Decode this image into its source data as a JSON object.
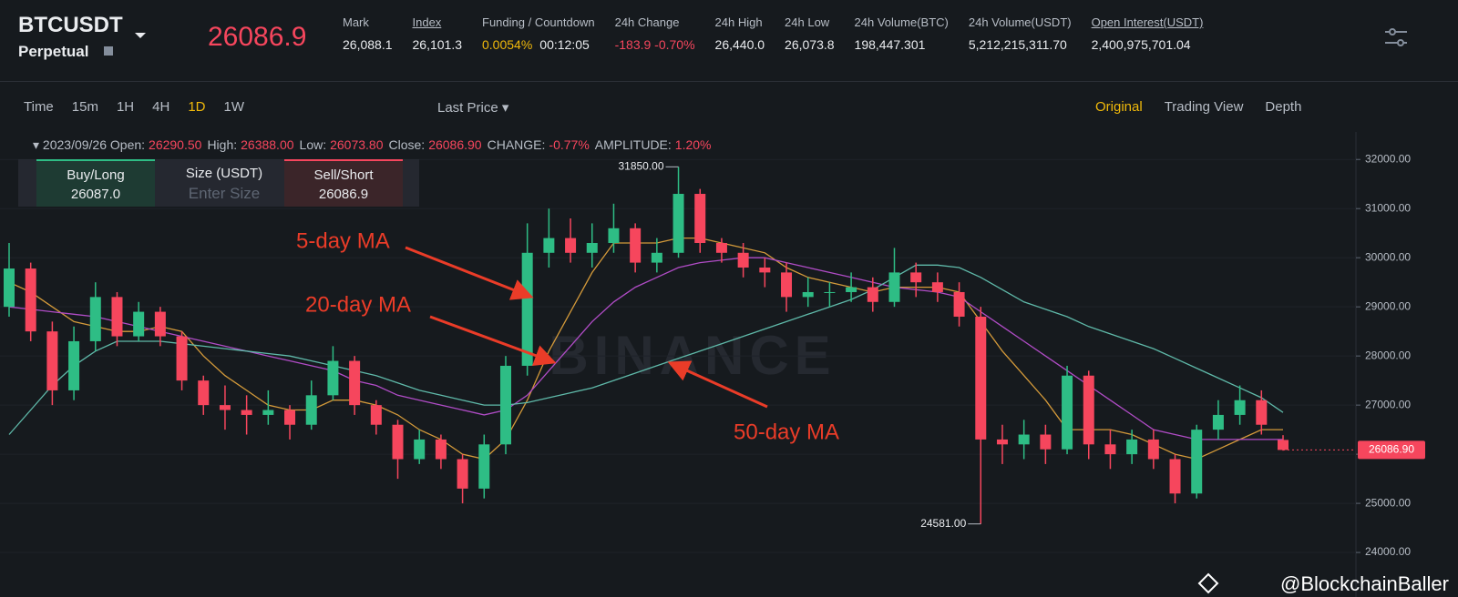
{
  "header": {
    "symbol": "BTCUSDT",
    "contract": "Perpetual",
    "last_price": "26086.9",
    "stats": [
      {
        "label": "Mark",
        "values": [
          "26,088.1"
        ]
      },
      {
        "label": "Index",
        "values": [
          "26,101.3"
        ]
      },
      {
        "label": "Funding / Countdown",
        "values": [
          "0.0054%",
          "00:12:05"
        ]
      },
      {
        "label": "24h Change",
        "values": [
          "-183.9 -0.70%"
        ]
      },
      {
        "label": "24h High",
        "values": [
          "26,440.0"
        ]
      },
      {
        "label": "24h Low",
        "values": [
          "26,073.8"
        ]
      },
      {
        "label": "24h Volume(BTC)",
        "values": [
          "198,447.301"
        ]
      },
      {
        "label": "24h Volume(USDT)",
        "values": [
          "5,212,215,311.70"
        ]
      },
      {
        "label": "Open Interest(USDT)",
        "values": [
          "2,400,975,701.04"
        ]
      }
    ]
  },
  "toolbar": {
    "intervals": [
      "Time",
      "15m",
      "1H",
      "4H",
      "1D",
      "1W"
    ],
    "active": "1D",
    "price_type": "Last Price",
    "views": [
      "Original",
      "Trading View",
      "Depth"
    ],
    "active_view": "Original"
  },
  "ohlc_bar": {
    "date": "2023/09/26",
    "items": [
      {
        "label": "Open:",
        "value": "26290.50"
      },
      {
        "label": "High:",
        "value": "26388.00"
      },
      {
        "label": "Low:",
        "value": "26073.80"
      },
      {
        "label": "Close:",
        "value": "26086.90"
      },
      {
        "label": "CHANGE:",
        "value": "-0.77%"
      },
      {
        "label": "AMPLITUDE:",
        "value": "1.20%"
      }
    ]
  },
  "order_panel": {
    "buy_label": "Buy/Long",
    "buy_price": "26087.0",
    "size_label": "Size (USDT)",
    "size_placeholder": "Enter Size",
    "sell_label": "Sell/Short",
    "sell_price": "26086.9"
  },
  "watermark": "BINANCE",
  "credit": "@BlockchainBaller",
  "chart_data": {
    "type": "candlestick",
    "ylim": [
      23390,
      32560
    ],
    "yticks": [
      {
        "value": 24000,
        "label": "24000.00"
      },
      {
        "value": 25000,
        "label": "25000.00"
      },
      {
        "value": 26000,
        "label": "26000.00"
      },
      {
        "value": 27000,
        "label": "27000.00"
      },
      {
        "value": 28000,
        "label": "28000.00"
      },
      {
        "value": 29000,
        "label": "29000.00"
      },
      {
        "value": 30000,
        "label": "30000.00"
      },
      {
        "value": 31000,
        "label": "31000.00"
      },
      {
        "value": 32000,
        "label": "32000.00"
      }
    ],
    "grid": true,
    "up_color": "#2ebd85",
    "down_color": "#f6465d",
    "open": [
      29000,
      29780,
      28500,
      27300,
      28300,
      29200,
      28400,
      28900,
      28400,
      27500,
      27000,
      26900,
      26800,
      26900,
      26600,
      27200,
      27900,
      27000,
      26600,
      25900,
      26300,
      25900,
      25300,
      26200,
      27800,
      30100,
      30400,
      30100,
      30300,
      30600,
      29900,
      30100,
      31300,
      30300,
      30100,
      29800,
      29700,
      29200,
      29300,
      29300,
      29400,
      29100,
      29700,
      29500,
      29300,
      28800,
      26300,
      26200,
      26400,
      26100,
      27600,
      26200,
      26000,
      26300,
      25900,
      25200,
      26500,
      26800,
      27100,
      26290.5
    ],
    "high": [
      30300,
      29900,
      28700,
      28600,
      29500,
      29300,
      29100,
      29000,
      28500,
      27600,
      27400,
      27200,
      27300,
      27000,
      27500,
      28200,
      28000,
      27100,
      26700,
      26500,
      26400,
      26000,
      26400,
      28000,
      30700,
      31000,
      30800,
      30700,
      31100,
      30700,
      30400,
      31850,
      31400,
      30400,
      30300,
      30000,
      29900,
      29600,
      29500,
      29700,
      29600,
      30200,
      29900,
      29700,
      29500,
      29000,
      26600,
      26700,
      26600,
      27800,
      27700,
      26500,
      26500,
      26500,
      26000,
      26600,
      27100,
      27400,
      27300,
      26388
    ],
    "low": [
      28800,
      28300,
      27000,
      27100,
      28100,
      28200,
      28300,
      28200,
      27300,
      26800,
      26500,
      26400,
      26600,
      26300,
      26500,
      27100,
      26800,
      26400,
      25500,
      25800,
      25700,
      25000,
      25100,
      26000,
      27600,
      29800,
      29900,
      29800,
      30100,
      29700,
      29700,
      30000,
      30100,
      29900,
      29600,
      29400,
      28900,
      29000,
      29000,
      29100,
      28900,
      29000,
      29200,
      29100,
      28600,
      24581,
      25800,
      25900,
      25800,
      26000,
      25900,
      25700,
      25800,
      25700,
      25000,
      25100,
      26300,
      26600,
      26400,
      26073.8
    ],
    "close": [
      29780,
      28500,
      27300,
      28300,
      29200,
      28400,
      28900,
      28400,
      27500,
      27000,
      26900,
      26800,
      26900,
      26600,
      27200,
      27900,
      27000,
      26600,
      25900,
      26300,
      25900,
      25300,
      26200,
      27800,
      30100,
      30400,
      30100,
      30300,
      30600,
      29900,
      30100,
      31300,
      30300,
      30100,
      29800,
      29700,
      29200,
      29300,
      29300,
      29400,
      29100,
      29700,
      29500,
      29300,
      28800,
      26300,
      26200,
      26400,
      26100,
      27600,
      26200,
      26000,
      26300,
      25900,
      25200,
      26500,
      26800,
      27100,
      26600,
      26086.9
    ],
    "ma_series": [
      {
        "name": "5-day MA",
        "color": "#d49a3a",
        "values": [
          29500,
          29300,
          29000,
          28700,
          28600,
          28500,
          28500,
          28600,
          28500,
          28000,
          27600,
          27300,
          27000,
          26900,
          26900,
          27100,
          27100,
          27000,
          26800,
          26500,
          26300,
          26000,
          25900,
          26300,
          27100,
          28100,
          28900,
          29700,
          30300,
          30300,
          30300,
          30400,
          30400,
          30300,
          30200,
          30100,
          29800,
          29600,
          29500,
          29400,
          29300,
          29400,
          29400,
          29400,
          29300,
          28700,
          28100,
          27600,
          27100,
          26500,
          26500,
          26500,
          26400,
          26200,
          26000,
          25900,
          26100,
          26300,
          26500,
          26500
        ]
      },
      {
        "name": "20-day MA",
        "color": "#b04cc6",
        "values": [
          29000,
          28950,
          28900,
          28850,
          28800,
          28700,
          28600,
          28500,
          28400,
          28300,
          28200,
          28100,
          28000,
          27900,
          27800,
          27700,
          27500,
          27400,
          27200,
          27100,
          27000,
          26900,
          26800,
          26900,
          27200,
          27700,
          28200,
          28700,
          29100,
          29400,
          29600,
          29800,
          29900,
          29950,
          30000,
          30000,
          29900,
          29800,
          29700,
          29600,
          29500,
          29400,
          29350,
          29300,
          29200,
          28900,
          28600,
          28300,
          28000,
          27700,
          27400,
          27100,
          26800,
          26500,
          26400,
          26300,
          26300,
          26300,
          26300,
          26300
        ]
      },
      {
        "name": "50-day MA",
        "color": "#5fb9a9",
        "values": [
          26400,
          26900,
          27400,
          27800,
          28100,
          28300,
          28300,
          28300,
          28250,
          28200,
          28150,
          28100,
          28050,
          28000,
          27900,
          27800,
          27700,
          27600,
          27450,
          27300,
          27200,
          27100,
          27000,
          27000,
          27050,
          27150,
          27250,
          27350,
          27500,
          27650,
          27800,
          27950,
          28100,
          28250,
          28400,
          28550,
          28700,
          28850,
          29000,
          29150,
          29350,
          29600,
          29850,
          29850,
          29800,
          29600,
          29350,
          29100,
          28950,
          28800,
          28600,
          28450,
          28300,
          28150,
          27950,
          27750,
          27550,
          27350,
          27150,
          26850
        ]
      }
    ],
    "high_label": "31850.00",
    "low_label": "24581.00",
    "last_price_label": "26086.90"
  }
}
